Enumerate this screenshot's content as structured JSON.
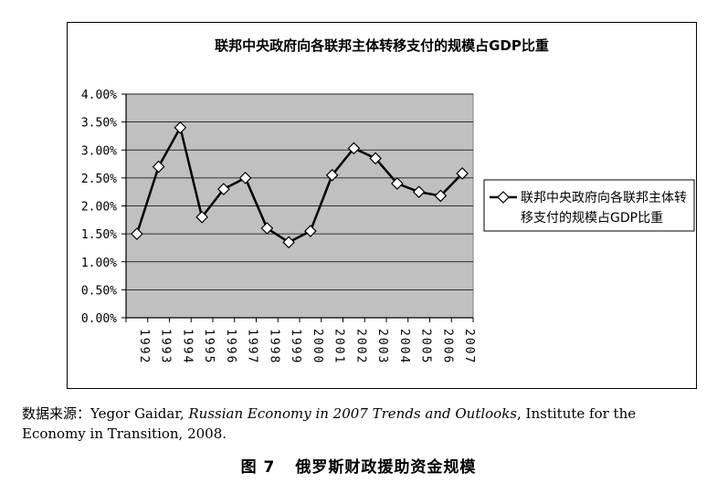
{
  "chart_data": {
    "type": "line",
    "title": "联邦中央政府向各联邦主体转移支付的规模占GDP比重",
    "x": [
      "1992",
      "1993",
      "1994",
      "1995",
      "1996",
      "1997",
      "1998",
      "1999",
      "2000",
      "2001",
      "2002",
      "2003",
      "2004",
      "2005",
      "2006",
      "2007"
    ],
    "series": [
      {
        "name": "联邦中央政府向各联邦主体转移支付的规模占GDP比重",
        "values": [
          1.5,
          2.7,
          3.4,
          1.8,
          2.3,
          2.5,
          1.6,
          1.35,
          1.55,
          2.55,
          3.03,
          2.85,
          2.4,
          2.25,
          2.18,
          2.58
        ]
      }
    ],
    "yticks": [
      "0.00%",
      "0.50%",
      "1.00%",
      "1.50%",
      "2.00%",
      "2.50%",
      "3.00%",
      "3.50%",
      "4.00%"
    ],
    "ylim": [
      0,
      4
    ],
    "grid": true,
    "legend_position": "right",
    "colors": {
      "plot_bg": "#c0c0c0",
      "line": "#000000",
      "marker_fill": "#ffffff"
    }
  },
  "source": {
    "lead": "数据来源：",
    "author": "Yegor Gaidar, ",
    "work": "Russian Economy in 2007 Trends and Outlooks",
    "rest": ", Institute for the Economy in Transition, 2008."
  },
  "caption": {
    "label": "图 7",
    "text": "俄罗斯财政援助资金规模"
  }
}
